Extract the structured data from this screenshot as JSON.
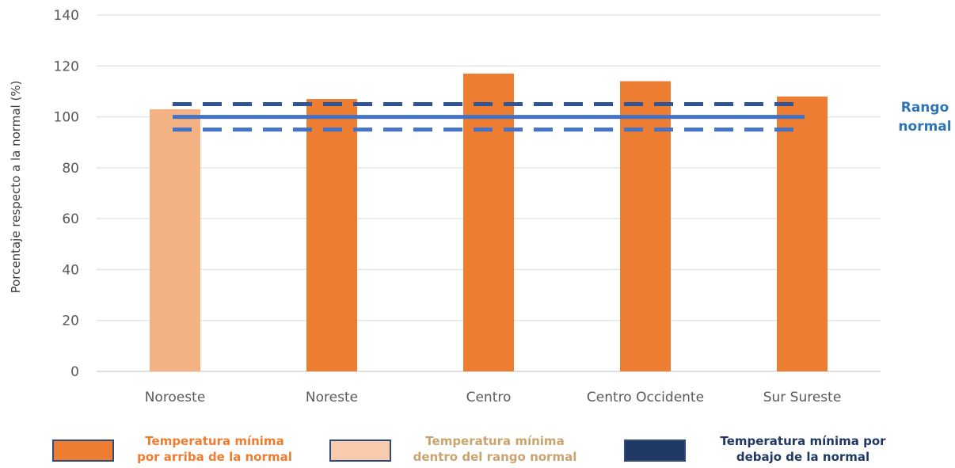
{
  "chart_data": {
    "type": "bar",
    "categories": [
      "Noroeste",
      "Noreste",
      "Centro",
      "Centro Occidente",
      "Sur Sureste"
    ],
    "values": [
      103,
      107,
      117,
      114,
      108
    ],
    "bar_colors": [
      "#f4b183",
      "#ed7d31",
      "#ed7d31",
      "#ed7d31",
      "#ed7d31"
    ],
    "ylabel": "Porcentaje respecto a la normal (%)",
    "ylim": [
      0,
      140
    ],
    "yticks": [
      0,
      20,
      40,
      60,
      80,
      100,
      120,
      140
    ],
    "grid": true,
    "reference_lines": [
      {
        "value": 105,
        "style": "dashed",
        "color": "#2f5597"
      },
      {
        "value": 100,
        "style": "solid",
        "color": "#4472c4"
      },
      {
        "value": 95,
        "style": "dashed",
        "color": "#4472c4"
      }
    ],
    "annotation": "Rango\nnormal",
    "annotation_color": "#2e75b6"
  },
  "legend": [
    {
      "label": "Temperatura mínima\npor arriba de la normal",
      "swatch_color": "#ed7d31",
      "text_color": "#ed7d31"
    },
    {
      "label": "Temperatura mínima\ndentro del rango normal",
      "swatch_color": "#f8cbad",
      "text_color": "#c9a46e"
    },
    {
      "label": "Temperatura mínima por\ndebajo de la normal",
      "swatch_color": "#203864",
      "text_color": "#203864"
    }
  ]
}
